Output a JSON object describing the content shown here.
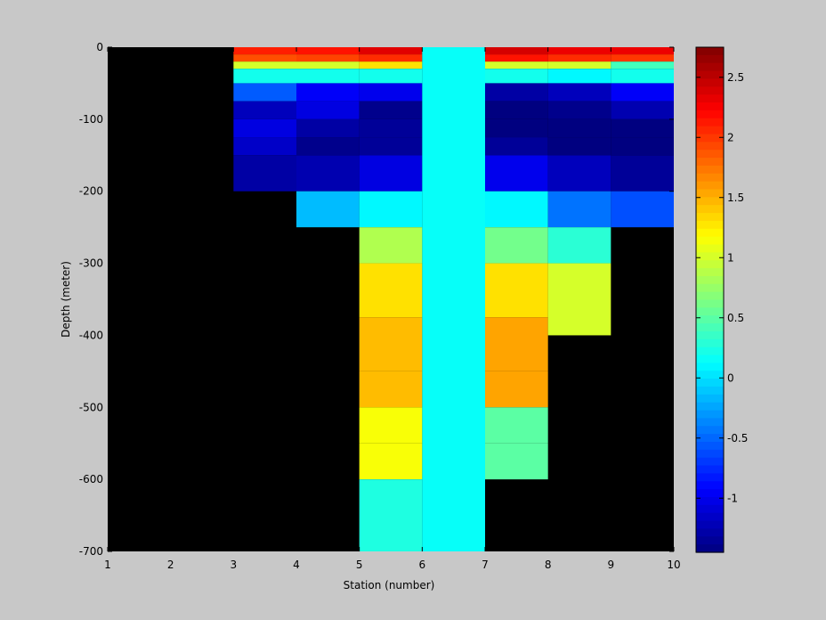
{
  "chart_data": {
    "type": "heatmap",
    "xlabel": "Station (number)",
    "ylabel": "Depth (meter)",
    "xlim": [
      1,
      10
    ],
    "ylim": [
      -700,
      0
    ],
    "x_ticks": [
      1,
      2,
      3,
      4,
      5,
      6,
      7,
      8,
      9,
      10
    ],
    "y_ticks": [
      0,
      -100,
      -200,
      -300,
      -400,
      -500,
      -600,
      -700
    ],
    "background_color": "#000000",
    "colorbar": {
      "colormap": "jet",
      "range": [
        -1.45,
        2.75
      ],
      "ticks": [
        2.5,
        2,
        1.5,
        1,
        0.5,
        0,
        -0.5,
        -1
      ]
    },
    "columns": [
      {
        "x0": 3,
        "x1": 4,
        "cells": [
          [
            0,
            -10,
            2.1
          ],
          [
            -10,
            -20,
            1.9
          ],
          [
            -20,
            -30,
            1.0
          ],
          [
            -30,
            -50,
            0.2
          ],
          [
            -50,
            -75,
            -0.55
          ],
          [
            -75,
            -100,
            -1.2
          ],
          [
            -100,
            -125,
            -1.05
          ],
          [
            -125,
            -150,
            -1.15
          ],
          [
            -150,
            -200,
            -1.3
          ]
        ]
      },
      {
        "x0": 4,
        "x1": 5,
        "cells": [
          [
            0,
            -10,
            2.15
          ],
          [
            -10,
            -20,
            1.95
          ],
          [
            -20,
            -30,
            1.0
          ],
          [
            -30,
            -50,
            0.2
          ],
          [
            -50,
            -75,
            -0.95
          ],
          [
            -75,
            -100,
            -1.05
          ],
          [
            -100,
            -125,
            -1.3
          ],
          [
            -125,
            -150,
            -1.4
          ],
          [
            -150,
            -200,
            -1.25
          ],
          [
            -200,
            -250,
            -0.15
          ]
        ]
      },
      {
        "x0": 5,
        "x1": 6,
        "cells": [
          [
            0,
            -10,
            2.35
          ],
          [
            -10,
            -20,
            2.05
          ],
          [
            -20,
            -30,
            1.3
          ],
          [
            -30,
            -50,
            0.2
          ],
          [
            -50,
            -75,
            -1.0
          ],
          [
            -75,
            -100,
            -1.4
          ],
          [
            -100,
            -125,
            -1.35
          ],
          [
            -125,
            -150,
            -1.35
          ],
          [
            -150,
            -200,
            -1.05
          ],
          [
            -200,
            -250,
            0.1
          ],
          [
            -250,
            -300,
            0.85
          ],
          [
            -300,
            -375,
            1.3
          ],
          [
            -375,
            -450,
            1.45
          ],
          [
            -450,
            -500,
            1.45
          ],
          [
            -500,
            -550,
            1.15
          ],
          [
            -550,
            -600,
            1.15
          ],
          [
            -600,
            -700,
            0.25
          ]
        ]
      },
      {
        "x0": 6,
        "x1": 7,
        "cells": [
          [
            0,
            -700,
            0.15
          ]
        ]
      },
      {
        "x0": 7,
        "x1": 8,
        "cells": [
          [
            0,
            -10,
            2.4
          ],
          [
            -10,
            -20,
            2.15
          ],
          [
            -20,
            -30,
            1.0
          ],
          [
            -30,
            -50,
            0.2
          ],
          [
            -50,
            -75,
            -1.3
          ],
          [
            -75,
            -100,
            -1.45
          ],
          [
            -100,
            -125,
            -1.45
          ],
          [
            -125,
            -150,
            -1.35
          ],
          [
            -150,
            -200,
            -1.0
          ],
          [
            -200,
            -250,
            0.1
          ],
          [
            -250,
            -300,
            0.6
          ],
          [
            -300,
            -375,
            1.3
          ],
          [
            -375,
            -450,
            1.55
          ],
          [
            -450,
            -500,
            1.55
          ],
          [
            -500,
            -550,
            0.5
          ],
          [
            -550,
            -600,
            0.5
          ]
        ]
      },
      {
        "x0": 8,
        "x1": 9,
        "cells": [
          [
            0,
            -10,
            2.3
          ],
          [
            -10,
            -20,
            2.05
          ],
          [
            -20,
            -30,
            1.0
          ],
          [
            -30,
            -50,
            0.1
          ],
          [
            -50,
            -75,
            -1.2
          ],
          [
            -75,
            -100,
            -1.4
          ],
          [
            -100,
            -125,
            -1.45
          ],
          [
            -125,
            -150,
            -1.45
          ],
          [
            -150,
            -200,
            -1.2
          ],
          [
            -200,
            -250,
            -0.45
          ],
          [
            -250,
            -300,
            0.3
          ],
          [
            -300,
            -350,
            1.0
          ],
          [
            -350,
            -400,
            1.0
          ]
        ]
      },
      {
        "x0": 9,
        "x1": 10,
        "cells": [
          [
            0,
            -10,
            2.3
          ],
          [
            -10,
            -20,
            2.0
          ],
          [
            -20,
            -30,
            0.4
          ],
          [
            -30,
            -50,
            0.2
          ],
          [
            -50,
            -75,
            -0.95
          ],
          [
            -75,
            -100,
            -1.25
          ],
          [
            -100,
            -125,
            -1.45
          ],
          [
            -125,
            -150,
            -1.45
          ],
          [
            -150,
            -200,
            -1.35
          ],
          [
            -200,
            -250,
            -0.6
          ]
        ]
      }
    ]
  }
}
